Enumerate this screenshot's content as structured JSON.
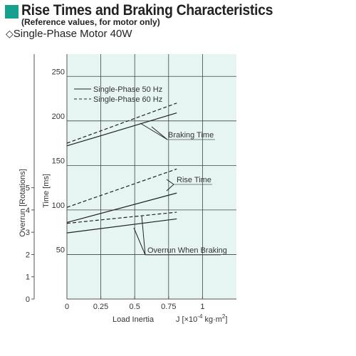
{
  "header": {
    "title": "Rise Times and Braking Characteristics",
    "note": "(Reference values, for motor only)",
    "subtitle": "Single-Phase Motor 40W",
    "diamond_glyph": "◇",
    "accent_color": "#16a08d"
  },
  "chart_data": {
    "type": "line",
    "xlabel": "Load Inertia",
    "xunit": "J  [×10",
    "xunit_exp": "-4",
    "xunit_end": " kg·m",
    "xunit_sq": "2",
    "xunit_close": "]",
    "ylabel_left": "Overrun [Rotations]",
    "ylabel_right": "Time [ms]",
    "xlim": [
      0,
      1.25
    ],
    "xticks": [
      {
        "v": 0,
        "label": "0"
      },
      {
        "v": 0.25,
        "label": "0.25"
      },
      {
        "v": 0.5,
        "label": "0.5"
      },
      {
        "v": 0.75,
        "label": "0.75"
      },
      {
        "v": 1,
        "label": "1"
      }
    ],
    "ylim_time": [
      0,
      275
    ],
    "yticks_time": [
      {
        "v": 50,
        "label": "50"
      },
      {
        "v": 100,
        "label": "100"
      },
      {
        "v": 150,
        "label": "150"
      },
      {
        "v": 200,
        "label": "200"
      },
      {
        "v": 250,
        "label": "250"
      }
    ],
    "ylim_overrun": [
      0,
      11
    ],
    "yticks_overrun": [
      {
        "v": 0,
        "label": "0"
      },
      {
        "v": 1,
        "label": "1"
      },
      {
        "v": 2,
        "label": "2"
      },
      {
        "v": 3,
        "label": "3"
      },
      {
        "v": 4,
        "label": "4"
      },
      {
        "v": 5,
        "label": "5"
      }
    ],
    "grid": true,
    "background_color": "#e6f5f1",
    "legend": {
      "placement": "top-left",
      "entries": [
        {
          "name": "Single-Phase 50 Hz",
          "style": "solid"
        },
        {
          "name": "Single-Phase 60 Hz",
          "style": "dashed"
        }
      ]
    },
    "series": [
      {
        "group": "braking_time",
        "style": "solid",
        "axis": "time",
        "x": [
          0,
          0.81
        ],
        "y": [
          172,
          209
        ]
      },
      {
        "group": "braking_time",
        "style": "dashed",
        "axis": "time",
        "x": [
          0,
          0.81
        ],
        "y": [
          175,
          220
        ]
      },
      {
        "group": "rise_time",
        "style": "solid",
        "axis": "time",
        "x": [
          0,
          0.81
        ],
        "y": [
          86,
          119
        ]
      },
      {
        "group": "rise_time",
        "style": "dashed",
        "axis": "time",
        "x": [
          0,
          0.81
        ],
        "y": [
          103,
          146
        ]
      },
      {
        "group": "overrun_braking",
        "style": "solid",
        "axis": "overrun",
        "x": [
          0,
          0.81
        ],
        "y": [
          2.97,
          3.6
        ]
      },
      {
        "group": "overrun_braking",
        "style": "dashed",
        "axis": "overrun",
        "x": [
          0,
          0.81
        ],
        "y": [
          3.4,
          3.9
        ]
      }
    ],
    "annotations": [
      {
        "text": "Braking Time",
        "group": "braking_time"
      },
      {
        "text": "Rise Time",
        "group": "rise_time"
      },
      {
        "text": "Overrun When Braking",
        "group": "overrun_braking"
      }
    ]
  }
}
